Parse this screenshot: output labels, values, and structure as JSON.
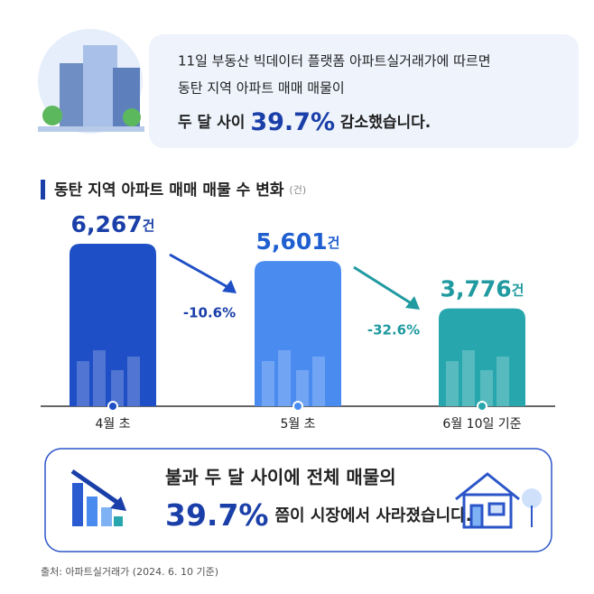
{
  "header": {
    "line1": "11일 부동산 빅데이터 플랫폼 아파트실거래가에 따르면",
    "line2": "동탄 지역 아파트 매매 매물이",
    "line3_before": "두 달 사이",
    "line3_highlight": "39.7%",
    "line3_after": "감소했습니다."
  },
  "chart_data": {
    "type": "bar",
    "title": "동탄 지역 아파트 매매 매물 수 변화",
    "unit_label": "(건)",
    "categories": [
      "4월 초",
      "5월 초",
      "6월 10일 기준"
    ],
    "values": [
      6267,
      5601,
      3776
    ],
    "value_labels": [
      "6,267",
      "5,601",
      "3,776"
    ],
    "value_unit": "건",
    "colors": [
      "#1f4fc6",
      "#4a8bf0",
      "#27a7ad"
    ],
    "label_colors": [
      "#1a3fa8",
      "#1f5fd0",
      "#1f9aa0"
    ],
    "ylim": [
      0,
      7000
    ],
    "annotations": [
      "-10.6%",
      "-32.6%"
    ]
  },
  "summary": {
    "line1": "불과 두 달 사이에 전체 매물의",
    "highlight": "39.7%",
    "line2_after": "쯤이 시장에서 사라졌습니다."
  },
  "source": "출처: 아파트실거래가 (2024. 6. 10 기준)"
}
